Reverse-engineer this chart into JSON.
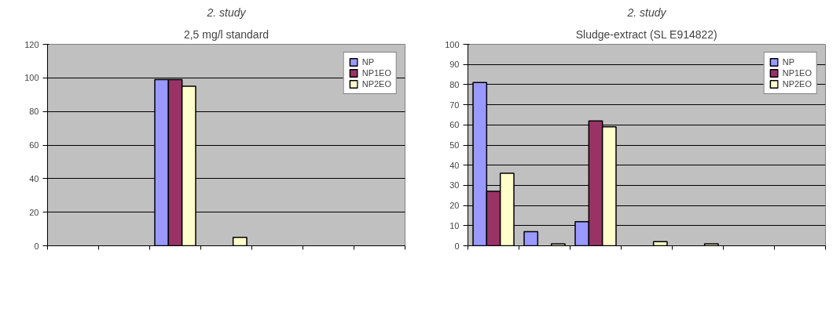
{
  "chart_data": [
    {
      "type": "bar",
      "title": "2. study",
      "subtitle": "2,5 mg/l standard",
      "categories": [
        null,
        null,
        null,
        null,
        null,
        null,
        null
      ],
      "series": [
        {
          "name": "NP",
          "color": "#9999ff",
          "values": [
            null,
            null,
            99,
            null,
            null,
            null,
            null
          ]
        },
        {
          "name": "NP1EO",
          "color": "#993366",
          "values": [
            null,
            null,
            99,
            null,
            null,
            null,
            null
          ]
        },
        {
          "name": "NP2EO",
          "color": "#ffffcc",
          "values": [
            null,
            null,
            95,
            5,
            null,
            null,
            null
          ]
        }
      ],
      "ylim": [
        0,
        120
      ],
      "yticks": [
        0,
        20,
        40,
        60,
        80,
        100,
        120
      ],
      "grid": "y",
      "legend": "top right"
    },
    {
      "type": "bar",
      "title": "2. study",
      "subtitle": "Sludge-extract (SL E914822)",
      "categories": [
        null,
        null,
        null,
        null,
        null,
        null,
        null
      ],
      "series": [
        {
          "name": "NP",
          "color": "#9999ff",
          "values": [
            81,
            7,
            12,
            null,
            null,
            null,
            null
          ]
        },
        {
          "name": "NP1EO",
          "color": "#993366",
          "values": [
            27,
            null,
            62,
            null,
            null,
            null,
            null
          ]
        },
        {
          "name": "NP2EO",
          "color": "#ffffcc",
          "values": [
            36,
            1,
            59,
            2,
            1,
            null,
            null
          ]
        }
      ],
      "ylim": [
        0,
        100
      ],
      "yticks": [
        0,
        10,
        20,
        30,
        40,
        50,
        60,
        70,
        80,
        90,
        100
      ],
      "grid": "y",
      "legend": "top right"
    }
  ]
}
